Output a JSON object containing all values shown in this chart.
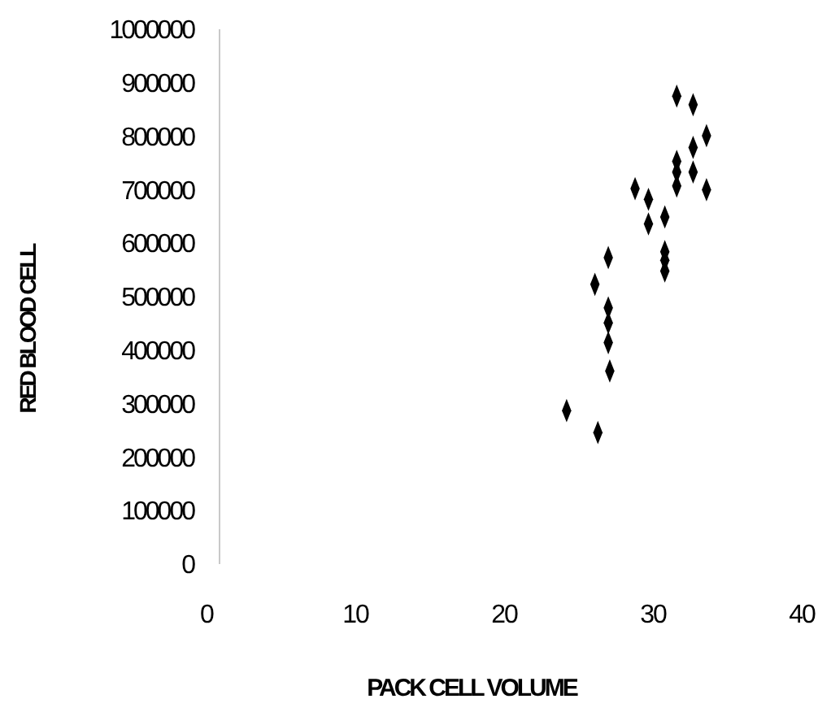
{
  "chart_data": {
    "type": "scatter",
    "xlabel": "PACK CELL VOLUME",
    "ylabel": "RED BLOOD CELL",
    "marker": "diamond",
    "grid": false,
    "xlim": [
      0,
      40
    ],
    "xticks": [
      0,
      10,
      20,
      30,
      40
    ],
    "ylim": [
      0,
      1000000
    ],
    "yticks": [
      0,
      100000,
      200000,
      300000,
      400000,
      500000,
      600000,
      700000,
      800000,
      900000,
      1000000
    ],
    "series": [
      {
        "color": "#000000",
        "x": [
          31.6,
          32.7,
          33.6,
          32.7,
          31.6,
          31.6,
          32.7,
          31.6,
          33.6,
          28.8,
          29.7,
          30.8,
          29.7,
          30.8,
          30.8,
          30.8,
          27.0,
          26.1,
          27.0,
          27.0,
          27.0,
          27.1,
          24.2,
          26.3
        ],
        "values": [
          875000,
          859000,
          801000,
          779000,
          753000,
          733000,
          733000,
          707000,
          700000,
          702000,
          682000,
          649000,
          636000,
          584000,
          568000,
          548000,
          573000,
          523000,
          479000,
          451000,
          414000,
          361000,
          287000,
          246000
        ]
      }
    ]
  }
}
